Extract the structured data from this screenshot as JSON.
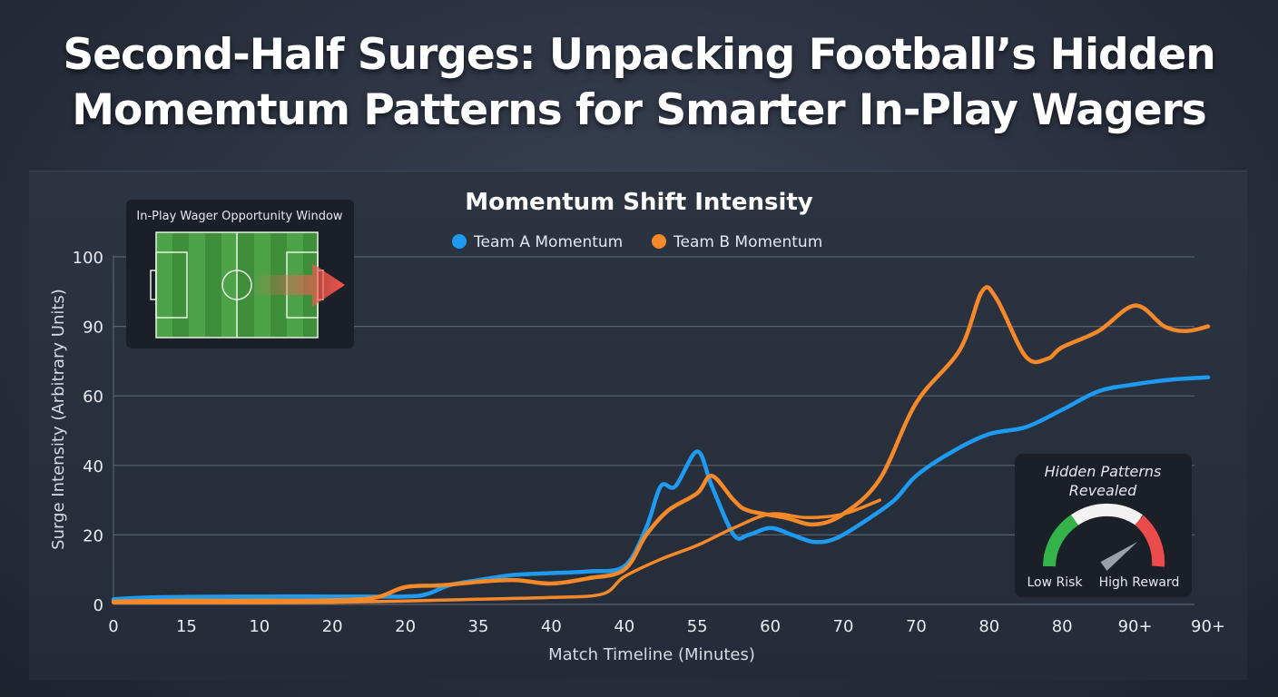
{
  "headline": {
    "line1": "Second-Half Surges: Unpacking Football’s Hidden",
    "line2": "Momemtum Patterns for Smarter In-Play Wagers"
  },
  "inset": {
    "title": "In-Play Wager Opportunity Window",
    "icon": "football-pitch-with-arrow-icon"
  },
  "gauge": {
    "title_line1": "Hidden Patterns",
    "title_line2": "Revealed",
    "low_label": "Low Risk",
    "high_label": "High Reward",
    "icon": "risk-reward-gauge-icon",
    "needle_level": 0.8
  },
  "colors": {
    "team_a": "#1e9bf0",
    "team_b": "#f5892a",
    "grid": "#566070",
    "gauge_low": "#34b34a",
    "gauge_mid": "#f2f2f2",
    "gauge_high": "#ec4b4b"
  },
  "chart_data": {
    "type": "line",
    "title": "Momentum Shift Intensity",
    "xlabel": "Match Timeline (Minutes)",
    "ylabel": "Surge Intensity (Arbitrary Units)",
    "x_tick_labels": [
      "0",
      "15",
      "10",
      "20",
      "20",
      "35",
      "40",
      "40",
      "55",
      "60",
      "70",
      "70",
      "80",
      "80",
      "90+",
      "90+"
    ],
    "y_tick_labels": [
      "0",
      "20",
      "40",
      "60",
      "90",
      "100"
    ],
    "ylim": [
      0,
      100
    ],
    "grid": true,
    "legend_position": "top-center",
    "series": [
      {
        "name": "Team A Momentum",
        "values": [
          [
            0,
            1.5
          ],
          [
            0.5,
            2
          ],
          [
            1,
            2.2
          ],
          [
            2,
            2.3
          ],
          [
            3,
            2.3
          ],
          [
            4,
            2.3
          ],
          [
            4.3,
            3
          ],
          [
            4.6,
            5.5
          ],
          [
            5,
            7
          ],
          [
            5.5,
            8.5
          ],
          [
            6,
            9
          ],
          [
            6.5,
            9.5
          ],
          [
            7,
            11
          ],
          [
            7.3,
            22
          ],
          [
            7.5,
            34
          ],
          [
            7.7,
            34
          ],
          [
            8,
            44
          ],
          [
            8.2,
            34
          ],
          [
            8.5,
            20
          ],
          [
            8.7,
            20
          ],
          [
            9,
            22
          ],
          [
            9.3,
            20
          ],
          [
            9.6,
            18
          ],
          [
            9.9,
            19
          ],
          [
            10.3,
            24
          ],
          [
            10.7,
            30
          ],
          [
            11,
            37
          ],
          [
            11.5,
            44
          ],
          [
            12,
            49
          ],
          [
            12.5,
            51
          ],
          [
            13,
            56
          ],
          [
            13.5,
            62
          ],
          [
            14,
            65
          ],
          [
            14.5,
            67
          ],
          [
            15,
            68
          ]
        ]
      },
      {
        "name": "Team B Momentum",
        "values": [
          [
            0,
            0.8
          ],
          [
            0.5,
            1
          ],
          [
            1,
            1.1
          ],
          [
            2,
            1.1
          ],
          [
            3,
            1.2
          ],
          [
            3.6,
            2
          ],
          [
            4,
            5
          ],
          [
            4.5,
            5.5
          ],
          [
            5,
            6.5
          ],
          [
            5.5,
            7
          ],
          [
            6,
            6
          ],
          [
            6.5,
            7.5
          ],
          [
            7,
            10
          ],
          [
            7.3,
            20
          ],
          [
            7.6,
            27
          ],
          [
            8,
            32
          ],
          [
            8.2,
            37
          ],
          [
            8.5,
            30
          ],
          [
            8.7,
            27
          ],
          [
            9.2,
            25
          ],
          [
            9.6,
            23
          ],
          [
            10,
            26
          ],
          [
            10.5,
            36
          ],
          [
            11,
            58
          ],
          [
            11.6,
            80
          ],
          [
            11.9,
            95
          ],
          [
            12.1,
            94
          ],
          [
            12.5,
            77
          ],
          [
            12.8,
            76
          ],
          [
            13,
            81
          ],
          [
            13.5,
            88
          ],
          [
            14,
            93
          ],
          [
            14.4,
            90
          ],
          [
            14.7,
            88
          ],
          [
            15,
            90
          ]
        ]
      },
      {
        "name": "",
        "values": [
          [
            0,
            0.5
          ],
          [
            1,
            0.5
          ],
          [
            2,
            0.5
          ],
          [
            3,
            0.6
          ],
          [
            4,
            1
          ],
          [
            5,
            1.5
          ],
          [
            6,
            2
          ],
          [
            6.7,
            3
          ],
          [
            7,
            8
          ],
          [
            7.5,
            13
          ],
          [
            8,
            17
          ],
          [
            8.5,
            22
          ],
          [
            9,
            26
          ],
          [
            9.5,
            25
          ],
          [
            10,
            26
          ],
          [
            10.5,
            30
          ]
        ]
      }
    ]
  }
}
